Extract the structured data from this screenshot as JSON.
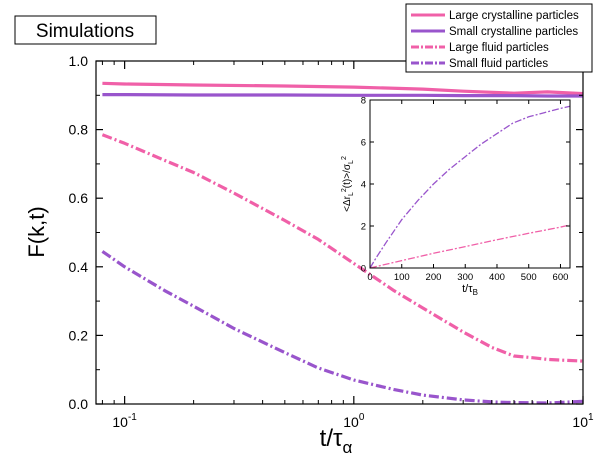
{
  "chart_data": [
    {
      "type": "line",
      "title": "",
      "annotation": "Simulations",
      "xlabel_main": "t/τ",
      "xlabel_sub": "α",
      "ylabel": "F(k,t)",
      "xscale": "log",
      "xlim": [
        0.075,
        10
      ],
      "ylim": [
        0,
        1.0
      ],
      "xticks": [
        {
          "value": 0.1,
          "base": "10",
          "exp": "-1"
        },
        {
          "value": 1,
          "base": "10",
          "exp": "0"
        },
        {
          "value": 10,
          "base": "10",
          "exp": "1"
        }
      ],
      "yticks": [
        0.0,
        0.2,
        0.4,
        0.6,
        0.8,
        1.0
      ],
      "ytick_labels": [
        "0.0",
        "0.2",
        "0.4",
        "0.6",
        "0.8",
        "1.0"
      ],
      "legend_position": "top-right",
      "series": [
        {
          "name": "Large crystalline particles",
          "color": "#f060a8",
          "style": "solid",
          "x": [
            0.08,
            0.1,
            0.2,
            0.5,
            1,
            2,
            3,
            5,
            7,
            10
          ],
          "y": [
            0.935,
            0.933,
            0.93,
            0.927,
            0.924,
            0.918,
            0.912,
            0.906,
            0.91,
            0.905
          ]
        },
        {
          "name": "Small crystalline particles",
          "color": "#9955cc",
          "style": "solid",
          "x": [
            0.08,
            0.1,
            0.2,
            0.5,
            1,
            2,
            3,
            5,
            7,
            10
          ],
          "y": [
            0.902,
            0.902,
            0.901,
            0.901,
            0.9,
            0.9,
            0.899,
            0.899,
            0.898,
            0.898
          ]
        },
        {
          "name": "Large fluid particles",
          "color": "#f060a8",
          "style": "dashdot",
          "x": [
            0.08,
            0.1,
            0.15,
            0.2,
            0.3,
            0.5,
            0.7,
            1,
            1.5,
            2,
            3,
            4,
            5,
            6,
            7,
            8,
            10
          ],
          "y": [
            0.785,
            0.76,
            0.71,
            0.675,
            0.615,
            0.535,
            0.48,
            0.41,
            0.33,
            0.28,
            0.21,
            0.165,
            0.14,
            0.135,
            0.13,
            0.128,
            0.125
          ]
        },
        {
          "name": "Small fluid particles",
          "color": "#9955cc",
          "style": "dashdot",
          "x": [
            0.08,
            0.1,
            0.15,
            0.2,
            0.3,
            0.5,
            0.7,
            1,
            1.5,
            2,
            3,
            4,
            5,
            7,
            10
          ],
          "y": [
            0.445,
            0.4,
            0.33,
            0.285,
            0.22,
            0.15,
            0.105,
            0.07,
            0.042,
            0.026,
            0.012,
            0.006,
            0.004,
            0.003,
            0.008
          ]
        }
      ]
    },
    {
      "type": "line",
      "title": "",
      "xlabel_main": "t/τ",
      "xlabel_sub": "B",
      "ylabel": "<Δr_L²(t)>/σ_L²",
      "xlim": [
        0,
        630
      ],
      "ylim": [
        0,
        8
      ],
      "xticks": [
        0,
        100,
        200,
        300,
        400,
        500,
        600
      ],
      "xtick_labels": [
        "0",
        "100",
        "200",
        "300",
        "400",
        "500",
        "600"
      ],
      "yticks": [
        0,
        2,
        4,
        6,
        8
      ],
      "ytick_labels": [
        "0",
        "2",
        "4",
        "6",
        "8"
      ],
      "series": [
        {
          "color": "#9955cc",
          "style": "dashdot",
          "x": [
            0,
            20,
            50,
            100,
            150,
            200,
            250,
            300,
            350,
            400,
            450,
            500,
            550,
            600,
            630
          ],
          "y": [
            0,
            0.5,
            1.2,
            2.3,
            3.2,
            4.0,
            4.7,
            5.3,
            5.9,
            6.4,
            6.9,
            7.2,
            7.4,
            7.6,
            7.7
          ]
        },
        {
          "color": "#f060a8",
          "style": "dashdot",
          "x": [
            0,
            100,
            200,
            300,
            400,
            500,
            600,
            630
          ],
          "y": [
            0,
            0.35,
            0.7,
            1.02,
            1.35,
            1.65,
            1.95,
            2.05
          ]
        }
      ]
    }
  ]
}
